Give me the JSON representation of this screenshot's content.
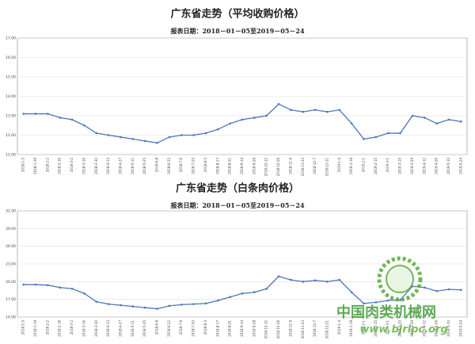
{
  "chart_data": [
    {
      "type": "line",
      "title": "广东省走势（平均收购价格）",
      "subtitle": "报表日期：2018－01－05至2019－05－24",
      "categories": [
        "2018-1-5",
        "2018-1-19",
        "2018-2-2",
        "2018-2-16",
        "2018-3-2",
        "2018-3-16",
        "2018-3-30",
        "2018-4-13",
        "2018-4-27",
        "2018-5-11",
        "2018-5-25",
        "2018-6-8",
        "2018-6-22",
        "2018-7-6",
        "2018-7-20",
        "2018-8-3",
        "2018-8-17",
        "2018-8-31",
        "2018-9-14",
        "2018-9-28",
        "2018-10-12",
        "2018-10-26",
        "2018-11-9",
        "2018-11-23",
        "2018-12-7",
        "2018-12-21",
        "2019-1-4",
        "2019-1-18",
        "2019-2-1",
        "2019-2-15",
        "2019-3-1",
        "2019-3-15",
        "2019-3-29",
        "2019-4-12",
        "2019-4-26",
        "2019-5-10",
        "2019-5-24"
      ],
      "series": [
        {
          "color": "#4a78b8",
          "values": [
            13.1,
            13.1,
            13.1,
            12.9,
            12.8,
            12.5,
            12.1,
            12.0,
            11.9,
            11.8,
            11.7,
            11.6,
            11.9,
            12.0,
            12.0,
            12.1,
            12.3,
            12.6,
            12.8,
            12.9,
            13.0,
            13.6,
            13.3,
            13.2,
            13.3,
            13.2,
            13.3,
            12.6,
            11.8,
            11.9,
            12.1,
            12.1,
            13.0,
            12.9,
            12.6,
            12.8,
            12.7
          ]
        }
      ],
      "ylim": [
        11,
        17
      ],
      "yticks": [
        {
          "value": 11,
          "label": "11.00"
        },
        {
          "value": 12,
          "label": "12.00"
        },
        {
          "value": 13,
          "label": "13.00"
        },
        {
          "value": 14,
          "label": "14.00"
        },
        {
          "value": 15,
          "label": "15.00"
        },
        {
          "value": 16,
          "label": "16.00"
        },
        {
          "value": 17,
          "label": "17.00"
        }
      ],
      "grid": true
    },
    {
      "type": "line",
      "title": "广东省走势（白条肉价格）",
      "subtitle": "报表日期：2018－01－05至2019－05－24",
      "categories": [
        "2018-1-5",
        "2018-1-19",
        "2018-2-2",
        "2018-2-16",
        "2018-3-2",
        "2018-3-16",
        "2018-3-30",
        "2018-4-13",
        "2018-4-27",
        "2018-5-11",
        "2018-5-25",
        "2018-6-8",
        "2018-6-22",
        "2018-7-6",
        "2018-7-20",
        "2018-8-3",
        "2018-8-17",
        "2018-8-31",
        "2018-9-14",
        "2018-9-28",
        "2018-10-12",
        "2018-10-26",
        "2018-11-9",
        "2018-11-23",
        "2018-12-7",
        "2018-12-21",
        "2019-1-4",
        "2019-1-18",
        "2019-2-1",
        "2019-2-15",
        "2019-3-1",
        "2019-3-15",
        "2019-3-29",
        "2019-4-12",
        "2019-4-26",
        "2019-5-10",
        "2019-5-24"
      ],
      "series": [
        {
          "color": "#4a78b8",
          "values": [
            19.5,
            19.5,
            19.4,
            19.0,
            18.8,
            18.0,
            16.6,
            16.2,
            16.0,
            15.8,
            15.6,
            15.4,
            15.9,
            16.1,
            16.2,
            16.3,
            16.8,
            17.4,
            18.0,
            18.2,
            18.8,
            20.9,
            20.3,
            20.0,
            20.2,
            20.0,
            20.3,
            18.2,
            16.3,
            16.5,
            16.8,
            16.9,
            19.2,
            19.0,
            18.4,
            18.7,
            18.6
          ]
        }
      ],
      "ylim": [
        14,
        32
      ],
      "yticks": [
        {
          "value": 14,
          "label": "14.00"
        },
        {
          "value": 17,
          "label": "17.00"
        },
        {
          "value": 20,
          "label": "20.00"
        },
        {
          "value": 23,
          "label": "23.00"
        },
        {
          "value": 26,
          "label": "26.00"
        },
        {
          "value": 29,
          "label": "29.00"
        },
        {
          "value": 32,
          "label": "32.00"
        }
      ],
      "grid": true
    }
  ],
  "watermark": {
    "name": "中国肉类机械网",
    "url": "www.bjrlpc.org"
  }
}
